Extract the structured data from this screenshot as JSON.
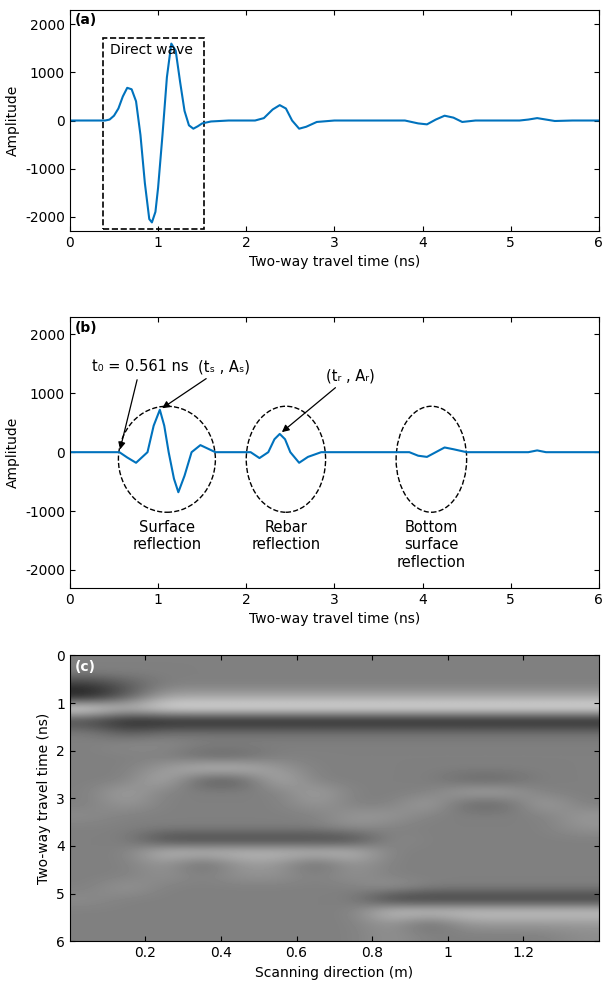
{
  "chart_data": [
    {
      "type": "line",
      "panel_label": "(a)",
      "x_label": "Two-way travel time (ns)",
      "y_label": "Amplitude",
      "xlim": [
        0,
        6
      ],
      "xticks": [
        0,
        1,
        2,
        3,
        4,
        5,
        6
      ],
      "ylim": [
        -2300,
        2300
      ],
      "yticks": [
        -2000,
        -1000,
        0,
        1000,
        2000
      ],
      "color": "#0072bd",
      "x": [
        0,
        0.4,
        0.45,
        0.5,
        0.55,
        0.6,
        0.65,
        0.7,
        0.75,
        0.8,
        0.85,
        0.9,
        0.93,
        0.97,
        1.0,
        1.05,
        1.1,
        1.15,
        1.2,
        1.25,
        1.3,
        1.35,
        1.4,
        1.45,
        1.5,
        1.6,
        1.8,
        2.1,
        2.2,
        2.3,
        2.38,
        2.45,
        2.52,
        2.6,
        2.68,
        2.8,
        3.0,
        3.8,
        3.95,
        4.05,
        4.15,
        4.25,
        4.35,
        4.45,
        4.6,
        5.1,
        5.2,
        5.3,
        5.4,
        5.5,
        5.7,
        6.0
      ],
      "values": [
        0,
        0,
        20,
        100,
        250,
        500,
        680,
        650,
        400,
        -300,
        -1300,
        -2050,
        -2120,
        -1900,
        -1400,
        -300,
        900,
        1600,
        1450,
        800,
        200,
        -100,
        -170,
        -120,
        -60,
        -20,
        0,
        0,
        50,
        230,
        320,
        250,
        0,
        -170,
        -130,
        -30,
        0,
        0,
        -60,
        -80,
        20,
        100,
        60,
        -30,
        0,
        0,
        20,
        50,
        20,
        -10,
        0,
        0
      ],
      "box": {
        "label": "Direct wave",
        "x_range": [
          0.38,
          1.52
        ],
        "y_range": [
          -2250,
          1720
        ]
      }
    },
    {
      "type": "line",
      "panel_label": "(b)",
      "x_label": "Two-way travel time (ns)",
      "y_label": "Amplitude",
      "xlim": [
        0,
        6
      ],
      "xticks": [
        0,
        1,
        2,
        3,
        4,
        5,
        6
      ],
      "ylim": [
        -2300,
        2300
      ],
      "yticks": [
        -2000,
        -1000,
        0,
        1000,
        2000
      ],
      "color": "#0072bd",
      "x": [
        0,
        0.561,
        0.65,
        0.75,
        0.88,
        0.95,
        1.02,
        1.07,
        1.12,
        1.18,
        1.23,
        1.3,
        1.38,
        1.48,
        1.65,
        2.05,
        2.15,
        2.25,
        2.32,
        2.38,
        2.44,
        2.5,
        2.6,
        2.7,
        2.85,
        3.85,
        3.95,
        4.05,
        4.15,
        4.25,
        4.35,
        4.5,
        5.2,
        5.3,
        5.4,
        6.0
      ],
      "values": [
        0,
        0,
        -90,
        -180,
        0,
        450,
        720,
        450,
        0,
        -450,
        -680,
        -400,
        0,
        120,
        0,
        0,
        -100,
        0,
        220,
        310,
        220,
        0,
        -180,
        -80,
        0,
        0,
        -60,
        -80,
        0,
        80,
        50,
        0,
        0,
        30,
        0,
        0
      ],
      "annotations": [
        {
          "text": "t₀ = 0.561 ns",
          "x": 0.561,
          "y": 0
        },
        {
          "text": "(tₛ , Aₛ)",
          "x": 1.02,
          "y": 720
        },
        {
          "text": "(tᵣ , Aᵣ)",
          "x": 2.38,
          "y": 310
        }
      ],
      "regions": [
        {
          "label": "Surface\nreflection",
          "t_range": [
            0.55,
            1.65
          ]
        },
        {
          "label": "Rebar\nreflection",
          "t_range": [
            2.0,
            2.9
          ]
        },
        {
          "label": "Bottom\nsurface\nreflection",
          "t_range": [
            3.7,
            4.5
          ]
        }
      ]
    },
    {
      "type": "heatmap",
      "panel_label": "(c)",
      "x_label": "Scanning direction (m)",
      "y_label": "Two-way travel time (ns)",
      "xlim": [
        0,
        1.4
      ],
      "xticks": [
        0.2,
        0.4,
        0.6,
        0.8,
        1,
        1.2
      ],
      "ylim": [
        6,
        0
      ],
      "yticks": [
        0,
        1,
        2,
        3,
        4,
        5,
        6
      ],
      "x": [
        0.05,
        0.15,
        0.25,
        0.35,
        0.45,
        0.55,
        0.65,
        0.75,
        0.85,
        0.95,
        1.05,
        1.15,
        1.25,
        1.35
      ],
      "y": [
        0.125,
        0.375,
        0.625,
        0.875,
        1.125,
        1.375,
        1.625,
        1.875,
        2.125,
        2.375,
        2.625,
        2.875,
        3.125,
        3.375,
        3.625,
        3.875,
        4.125,
        4.375,
        4.625,
        4.875,
        5.125,
        5.375,
        5.625,
        5.875
      ],
      "cells": [
        [
          0,
          0,
          0,
          0,
          0,
          0,
          0,
          0,
          0,
          0,
          0,
          0,
          0,
          0
        ],
        [
          0,
          0,
          0,
          0,
          0,
          0,
          0,
          0,
          0,
          0,
          0,
          0,
          0,
          0
        ],
        [
          -0.6,
          -0.3,
          0,
          0,
          0,
          0,
          0,
          0,
          0,
          0,
          0,
          0,
          0,
          0
        ],
        [
          -0.8,
          -0.3,
          0.3,
          0.3,
          0.3,
          0.3,
          0.3,
          0.3,
          0.3,
          0.3,
          0.3,
          0.3,
          0.3,
          0.3
        ],
        [
          0.9,
          0.5,
          0.8,
          0.8,
          0.8,
          0.8,
          0.8,
          0.8,
          0.8,
          0.8,
          0.8,
          0.8,
          0.8,
          0.8
        ],
        [
          -0.5,
          -0.8,
          -0.8,
          -0.8,
          -0.8,
          -0.8,
          -0.8,
          -0.8,
          -0.8,
          -0.8,
          -0.8,
          -0.8,
          -0.8,
          -0.8
        ],
        [
          0,
          -0.3,
          -0.1,
          -0.1,
          -0.1,
          -0.1,
          -0.1,
          -0.1,
          -0.1,
          -0.1,
          -0.1,
          -0.1,
          -0.1,
          -0.1
        ],
        [
          0,
          0.1,
          0.1,
          0,
          0,
          0,
          0,
          0,
          0,
          0,
          0,
          0,
          0,
          0
        ],
        [
          0,
          0,
          0,
          -0.2,
          -0.2,
          0,
          0,
          0,
          0,
          0,
          0,
          0,
          0,
          0
        ],
        [
          0,
          0,
          0.2,
          0.5,
          0.5,
          0.2,
          0,
          0,
          0,
          0,
          0,
          0,
          0,
          0
        ],
        [
          0,
          0,
          0.4,
          -0.3,
          -0.3,
          0.4,
          0,
          0,
          0,
          0,
          -0.2,
          -0.2,
          0,
          0
        ],
        [
          0,
          0.3,
          0,
          0,
          0,
          0,
          0.3,
          0,
          0,
          0,
          0.3,
          0.3,
          0,
          0
        ],
        [
          0,
          0.2,
          0,
          0,
          0,
          0,
          0.2,
          0,
          0,
          0.3,
          -0.2,
          -0.2,
          0.3,
          0
        ],
        [
          0.1,
          0,
          0,
          0,
          0,
          0,
          0,
          0.2,
          0.2,
          0,
          0,
          0,
          0,
          0.2
        ],
        [
          0,
          0,
          0,
          0,
          0,
          0,
          0,
          0.15,
          0,
          0,
          0,
          0,
          0,
          0.15
        ],
        [
          0,
          0,
          -0.5,
          -0.5,
          -0.5,
          -0.5,
          -0.5,
          -0.5,
          0.1,
          0,
          0,
          0,
          0,
          0
        ],
        [
          0,
          0,
          0.5,
          0.5,
          0.5,
          0.5,
          0.5,
          0.5,
          0,
          0,
          0,
          0,
          0,
          0
        ],
        [
          0,
          0,
          0.2,
          -0.2,
          0.2,
          0.2,
          -0.2,
          0.2,
          0,
          0,
          0,
          0,
          0,
          0
        ],
        [
          0,
          0,
          0.15,
          0,
          0.15,
          0.15,
          0,
          0.15,
          0,
          0,
          0,
          0,
          0,
          0
        ],
        [
          0,
          0.2,
          0,
          0,
          0,
          0,
          0,
          0,
          0.2,
          0,
          0,
          0,
          0,
          0
        ],
        [
          0.1,
          0,
          0,
          0,
          0,
          0,
          0,
          0,
          -0.6,
          -0.6,
          -0.6,
          -0.6,
          -0.6,
          -0.6
        ],
        [
          0,
          0,
          0,
          0,
          0,
          0,
          0,
          0,
          0.6,
          0.6,
          0.6,
          0.6,
          0.6,
          0.6
        ],
        [
          0,
          0,
          0,
          0,
          0,
          0,
          0,
          0,
          0.2,
          -0.2,
          0.2,
          0.2,
          0.2,
          0.2
        ],
        [
          0,
          0,
          0,
          0,
          0,
          0,
          0,
          0,
          0.15,
          0,
          0,
          0,
          0,
          0.1
        ]
      ],
      "color_range": [
        -1,
        1
      ]
    }
  ]
}
